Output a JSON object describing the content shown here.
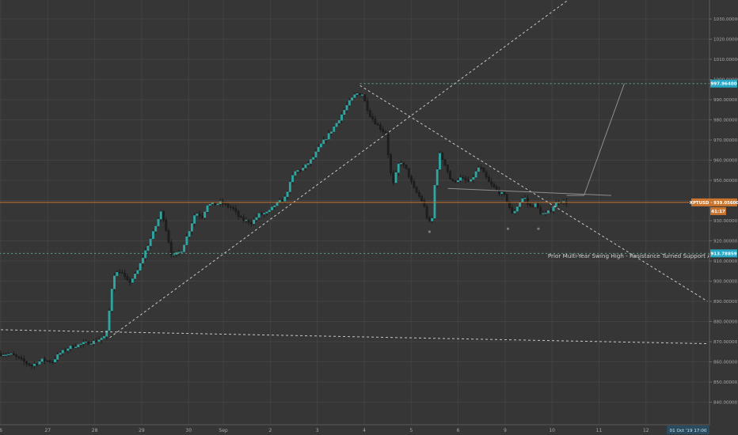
{
  "chart_data": {
    "type": "candlestick",
    "symbol_label": "XPTUSD",
    "theme": {
      "background": "#363636",
      "grid": "#424242",
      "axis_text": "#a8a8a8",
      "candle_up": "#2ea7a3",
      "candle_down": "#1f1f1f",
      "wick": "#1c1c1c",
      "trendline": "#c8c8c8",
      "level_line": "#5fa59c",
      "price_line": "#c9742f",
      "level_badge": "#26a7c4",
      "price_badge": "#c9742f"
    },
    "y_axis": {
      "min": 835,
      "max": 1030,
      "ticks": [
        "840.00000",
        "850.00000",
        "860.00000",
        "870.00000",
        "880.00000",
        "890.00000",
        "900.00000",
        "910.00000",
        "920.00000",
        "930.00000",
        "940.00000",
        "950.00000",
        "960.00000",
        "970.00000",
        "980.00000",
        "990.00000",
        "1000.00000",
        "1010.00000",
        "1020.00000",
        "1030.00000"
      ]
    },
    "x_axis": {
      "labels": [
        {
          "label": "6",
          "x": 0
        },
        {
          "label": "27",
          "x": 1
        },
        {
          "label": "28",
          "x": 2
        },
        {
          "label": "29",
          "x": 3
        },
        {
          "label": "30",
          "x": 4
        },
        {
          "label": "Sep",
          "x": 4.74
        },
        {
          "label": "2",
          "x": 5.74
        },
        {
          "label": "3",
          "x": 6.74
        },
        {
          "label": "4",
          "x": 7.74
        },
        {
          "label": "5",
          "x": 8.74
        },
        {
          "label": "6",
          "x": 9.74
        },
        {
          "label": "9",
          "x": 10.74
        },
        {
          "label": "10",
          "x": 11.74
        },
        {
          "label": "11",
          "x": 12.74
        },
        {
          "label": "12",
          "x": 13.74
        },
        {
          "label": "13",
          "x": 14.74
        }
      ],
      "date_badge": "01 Oct '19   17:00"
    },
    "price_path": [
      [
        0.0,
        864.0
      ],
      [
        0.3,
        863.5
      ],
      [
        0.55,
        860.0
      ],
      [
        0.7,
        858.0
      ],
      [
        0.95,
        861.0
      ],
      [
        1.15,
        860.0
      ],
      [
        1.3,
        864.0
      ],
      [
        1.5,
        867.0
      ],
      [
        1.8,
        869.0
      ],
      [
        2.05,
        870.0
      ],
      [
        2.3,
        873.0
      ],
      [
        2.38,
        888.0
      ],
      [
        2.45,
        903.0
      ],
      [
        2.6,
        905.0
      ],
      [
        2.78,
        899.0
      ],
      [
        2.95,
        904.0
      ],
      [
        3.1,
        913.0
      ],
      [
        3.3,
        924.0
      ],
      [
        3.48,
        935.0
      ],
      [
        3.6,
        923.0
      ],
      [
        3.7,
        912.0
      ],
      [
        3.9,
        915.0
      ],
      [
        4.05,
        924.0
      ],
      [
        4.2,
        934.0
      ],
      [
        4.35,
        932.0
      ],
      [
        4.45,
        938.0
      ],
      [
        4.6,
        938.0
      ],
      [
        4.75,
        939.0
      ],
      [
        4.9,
        937.0
      ],
      [
        5.0,
        936.0
      ],
      [
        5.15,
        931.0
      ],
      [
        5.4,
        929.0
      ],
      [
        5.55,
        933.0
      ],
      [
        5.75,
        934.0
      ],
      [
        5.9,
        938.0
      ],
      [
        6.1,
        941.0
      ],
      [
        6.3,
        954.0
      ],
      [
        6.5,
        956.0
      ],
      [
        6.7,
        961.0
      ],
      [
        6.85,
        967.0
      ],
      [
        7.05,
        973.0
      ],
      [
        7.25,
        980.0
      ],
      [
        7.45,
        988.0
      ],
      [
        7.62,
        993.0
      ],
      [
        7.75,
        993.0
      ],
      [
        7.9,
        983.0
      ],
      [
        8.05,
        978.0
      ],
      [
        8.25,
        973.0
      ],
      [
        8.35,
        955.0
      ],
      [
        8.4,
        947.0
      ],
      [
        8.55,
        960.0
      ],
      [
        8.7,
        955.0
      ],
      [
        8.85,
        946.0
      ],
      [
        9.05,
        939.0
      ],
      [
        9.15,
        930.0
      ],
      [
        9.23,
        928.0
      ],
      [
        9.3,
        949.0
      ],
      [
        9.4,
        963.0
      ],
      [
        9.52,
        958.0
      ],
      [
        9.65,
        949.0
      ],
      [
        9.85,
        951.0
      ],
      [
        10.05,
        949.0
      ],
      [
        10.25,
        957.0
      ],
      [
        10.45,
        949.0
      ],
      [
        10.62,
        945.0
      ],
      [
        10.8,
        942.0
      ],
      [
        10.95,
        933.0
      ],
      [
        11.1,
        939.0
      ],
      [
        11.2,
        942.0
      ],
      [
        11.3,
        937.0
      ],
      [
        11.45,
        938.0
      ],
      [
        11.55,
        934.0
      ],
      [
        11.65,
        933.0
      ],
      [
        11.75,
        935.0
      ],
      [
        11.85,
        938.0
      ],
      [
        11.95,
        940.0
      ],
      [
        12.05,
        939.1
      ]
    ],
    "lines": [
      {
        "name": "rising-trendline",
        "style": "dashed",
        "from": [
          2.32,
          872.0
        ],
        "to": [
          12.35,
          1044.0
        ]
      },
      {
        "name": "long-support-line",
        "style": "dashed",
        "from": [
          -0.2,
          876.0
        ],
        "to": [
          15.05,
          869.0
        ]
      },
      {
        "name": "descending-trendline",
        "style": "dashed",
        "from": [
          7.65,
          997.0
        ],
        "to": [
          15.05,
          890.0
        ]
      },
      {
        "name": "neckline",
        "style": "solid",
        "from": [
          9.52,
          946.0
        ],
        "to": [
          13.0,
          942.5
        ]
      },
      {
        "name": "projection-flat",
        "style": "solid",
        "from": [
          12.05,
          942.5
        ],
        "to": [
          12.42,
          942.5
        ]
      },
      {
        "name": "projection-rise",
        "style": "solid",
        "from": [
          12.42,
          942.5
        ],
        "to": [
          13.28,
          998.0
        ]
      }
    ],
    "levels": [
      {
        "name": "resistance-level",
        "value": 997.964,
        "badge": "997.96400",
        "from": 7.65
      },
      {
        "name": "support-level",
        "value": 913.78859,
        "badge": "913.78859",
        "from": -0.2
      }
    ],
    "current_price": {
      "value": 939.056,
      "badge": "XPTUSD · 939.05600",
      "countdown": "41:17"
    },
    "markers": [
      {
        "x": 9.13,
        "y": 924.5
      },
      {
        "x": 10.8,
        "y": 926.0
      },
      {
        "x": 11.45,
        "y": 926.0
      }
    ],
    "annotations": [
      {
        "text": "Prior Multi-Year Swing High - Resistance Turned Support After Breakout",
        "x": 11.65,
        "y": 911.5
      }
    ]
  }
}
